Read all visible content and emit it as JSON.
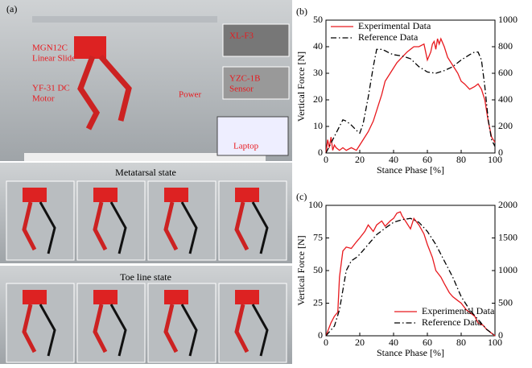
{
  "panel_a": {
    "label": "(a)",
    "annotations": [
      [
        "MGN12C",
        "Linear Slide"
      ],
      [
        "YF-31 DC",
        "Motor"
      ],
      [
        "XL-F3"
      ],
      [
        "YZC-1B",
        "Sensor"
      ],
      [
        "Power"
      ],
      [
        "Laptop"
      ]
    ],
    "captions": [
      "Metatarsal state",
      "Toe line state"
    ]
  },
  "chart_data": [
    {
      "type": "line",
      "label": "(b)",
      "xlabel": "Stance Phase [%]",
      "ylabel": "Vertical Force [N]",
      "xlim": [
        0,
        100
      ],
      "xticks": [
        0,
        20,
        40,
        60,
        80,
        100
      ],
      "ylim": [
        0,
        50
      ],
      "yticks": [
        0,
        10,
        20,
        30,
        40,
        50
      ],
      "y2lim": [
        0,
        1000
      ],
      "y2ticks": [
        0,
        200,
        400,
        600,
        800,
        1000
      ],
      "legend": "upper left",
      "series": [
        {
          "name": "Experimental Data",
          "color": "#e8191e",
          "style": "solid",
          "x": [
            0,
            1,
            2,
            3,
            4,
            5,
            6,
            8,
            10,
            12,
            15,
            18,
            20,
            22,
            25,
            28,
            30,
            33,
            35,
            38,
            40,
            42,
            45,
            48,
            50,
            52,
            55,
            58,
            60,
            62,
            63,
            64,
            65,
            66,
            67,
            68,
            70,
            72,
            75,
            78,
            80,
            82,
            85,
            88,
            90,
            92,
            94,
            96,
            98,
            100
          ],
          "values": [
            0,
            5,
            2,
            6,
            1,
            3,
            2,
            1,
            2,
            1,
            2,
            1,
            3,
            5,
            8,
            12,
            16,
            22,
            27,
            30,
            32,
            34,
            36,
            38,
            39,
            40,
            40,
            41,
            35,
            38,
            41,
            42,
            39,
            43,
            41,
            43,
            40,
            36,
            33,
            30,
            27,
            26,
            24,
            25,
            26,
            24,
            20,
            12,
            6,
            4
          ]
        },
        {
          "name": "Reference Data",
          "color": "#000000",
          "style": "dashdot",
          "axis": "y2",
          "x": [
            0,
            2,
            4,
            6,
            8,
            10,
            12,
            15,
            18,
            20,
            22,
            25,
            28,
            30,
            32,
            33,
            35,
            38,
            40,
            45,
            50,
            55,
            60,
            65,
            70,
            75,
            80,
            85,
            88,
            90,
            92,
            94,
            96,
            98,
            100
          ],
          "values": [
            0,
            50,
            100,
            150,
            200,
            250,
            240,
            210,
            170,
            150,
            220,
            420,
            650,
            780,
            780,
            780,
            770,
            750,
            740,
            730,
            710,
            650,
            610,
            600,
            620,
            650,
            700,
            740,
            760,
            760,
            700,
            500,
            250,
            100,
            50
          ]
        }
      ]
    },
    {
      "type": "line",
      "label": "(c)",
      "xlabel": "Stance Phase [%]",
      "ylabel": "Vertical Force [N]",
      "xlim": [
        0,
        100
      ],
      "xticks": [
        0,
        20,
        40,
        60,
        80,
        100
      ],
      "ylim": [
        0,
        100
      ],
      "yticks": [
        0,
        25,
        50,
        75,
        100
      ],
      "y2lim": [
        0,
        2000
      ],
      "y2ticks": [
        0,
        500,
        1000,
        1500,
        2000
      ],
      "legend": "lower right",
      "series": [
        {
          "name": "Experimental Data",
          "color": "#e8191e",
          "style": "solid",
          "x": [
            0,
            3,
            5,
            7,
            8,
            10,
            12,
            15,
            18,
            20,
            23,
            25,
            28,
            30,
            33,
            35,
            38,
            40,
            42,
            44,
            45,
            47,
            50,
            52,
            55,
            58,
            60,
            63,
            65,
            68,
            70,
            73,
            75,
            78,
            80,
            83,
            85,
            88,
            90,
            93,
            95,
            98,
            100
          ],
          "values": [
            0,
            10,
            15,
            18,
            45,
            65,
            68,
            67,
            72,
            75,
            80,
            85,
            80,
            85,
            88,
            84,
            88,
            90,
            94,
            95,
            92,
            88,
            82,
            90,
            85,
            78,
            70,
            60,
            50,
            45,
            40,
            33,
            30,
            27,
            25,
            20,
            18,
            15,
            10,
            8,
            5,
            2,
            0
          ]
        },
        {
          "name": "Reference Data",
          "color": "#000000",
          "style": "dashdot",
          "axis": "y2",
          "x": [
            0,
            5,
            8,
            10,
            12,
            15,
            18,
            20,
            25,
            30,
            35,
            40,
            45,
            50,
            55,
            60,
            65,
            70,
            75,
            80,
            85,
            90,
            95,
            100
          ],
          "values": [
            0,
            150,
            400,
            700,
            1000,
            1150,
            1200,
            1250,
            1400,
            1550,
            1650,
            1740,
            1780,
            1800,
            1740,
            1600,
            1400,
            1150,
            900,
            600,
            400,
            250,
            100,
            0
          ]
        }
      ]
    }
  ]
}
